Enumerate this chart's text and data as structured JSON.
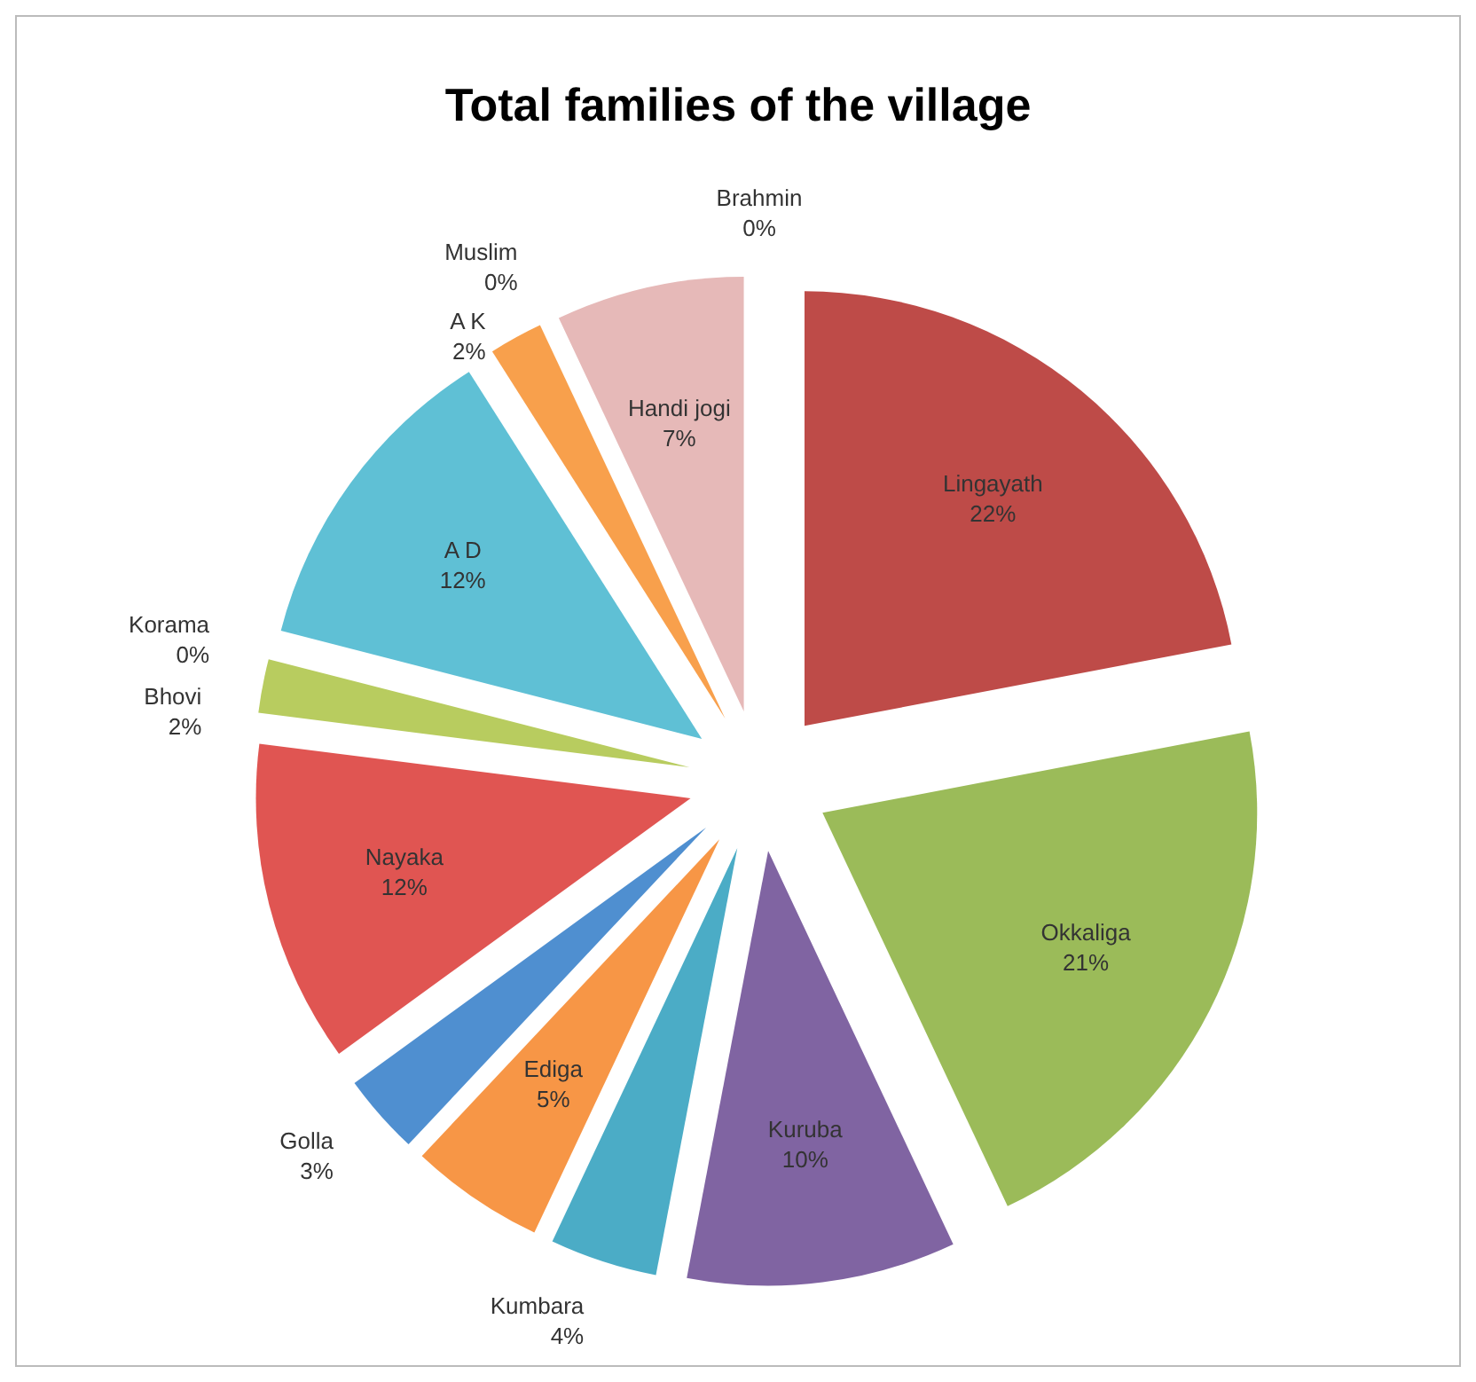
{
  "chart_data": {
    "type": "pie",
    "title": "Total families of the village",
    "categories": [
      "Brahmin",
      "Lingayath",
      "Okkaliga",
      "Kuruba",
      "Kumbara",
      "Ediga",
      "Golla",
      "Nayaka",
      "Bhovi",
      "Korama",
      "A D",
      "A K",
      "Muslim",
      "Handi jogi"
    ],
    "values": [
      0,
      22,
      21,
      10,
      4,
      5,
      3,
      12,
      2,
      0,
      12,
      2,
      0,
      7
    ],
    "value_labels": [
      "0%",
      "22%",
      "21%",
      "10%",
      "4%",
      "5%",
      "3%",
      "12%",
      "2%",
      "0%",
      "12%",
      "2%",
      "0%",
      "7%"
    ],
    "colors": [
      "#4a7ebb",
      "#be4b48",
      "#9bbb59",
      "#8064a2",
      "#4bacc6",
      "#f79646",
      "#4f8fd0",
      "#e05552",
      "#b8cc5f",
      "#9a80b8",
      "#5fc0d5",
      "#f8a04c",
      "#a8c8e8",
      "#e6b9b8"
    ],
    "legend": false
  }
}
